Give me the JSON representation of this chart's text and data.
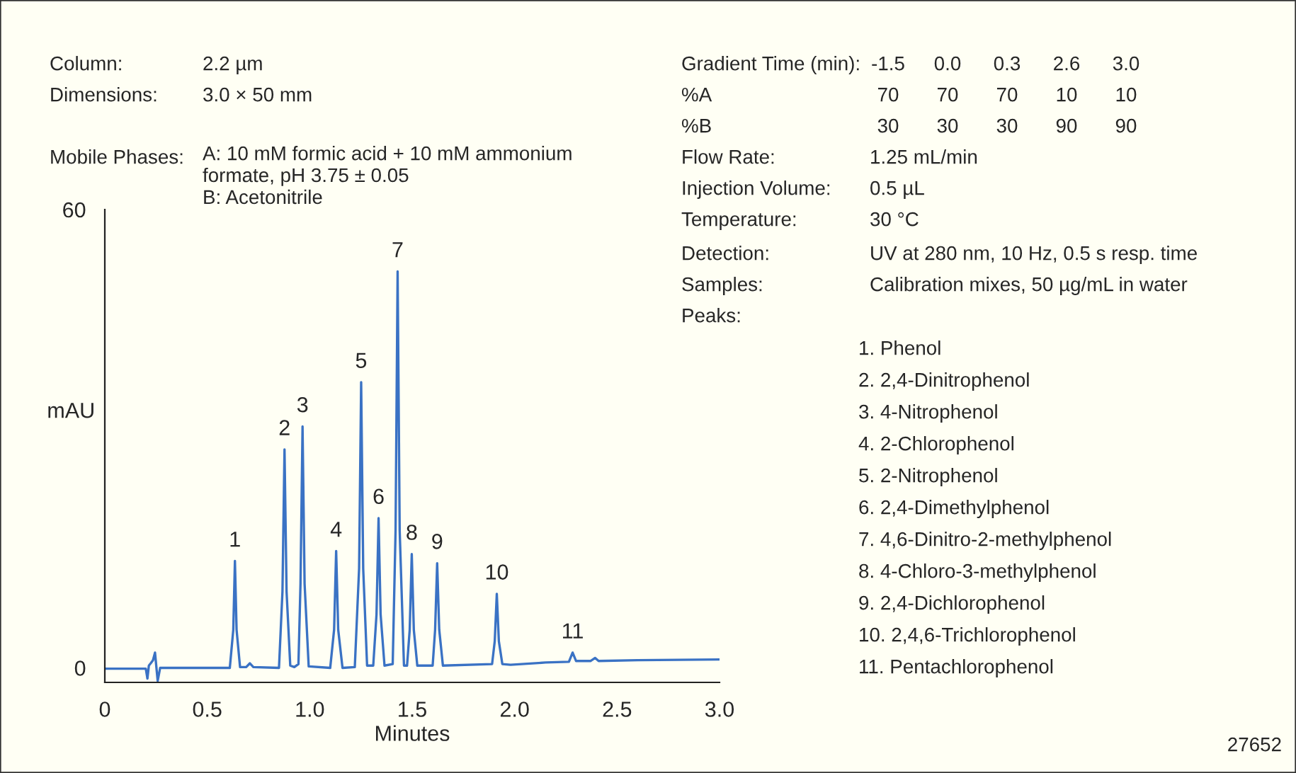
{
  "chart_data": {
    "type": "line",
    "xlabel": "Minutes",
    "ylabel": "mAU",
    "xlim": [
      0,
      3
    ],
    "ylim": [
      -1.9,
      60
    ],
    "xticks": [
      {
        "value": 0,
        "label": "0"
      },
      0.5,
      {
        "value": 1,
        "label": "1.0"
      },
      1.5,
      {
        "value": 2,
        "label": "2.0"
      },
      2.5,
      {
        "value": 3,
        "label": "3.0"
      }
    ],
    "yticks": [
      0,
      60
    ],
    "series": [
      {
        "color": "#3a72c4",
        "x": [
          0.0,
          0.2,
          0.208,
          0.215,
          0.224,
          0.235,
          0.245,
          0.252,
          0.258,
          0.27,
          0.3,
          0.61,
          0.627,
          0.635,
          0.643,
          0.66,
          0.69,
          0.708,
          0.725,
          0.85,
          0.867,
          0.877,
          0.887,
          0.905,
          0.925,
          0.945,
          0.955,
          0.965,
          0.975,
          0.995,
          1.1,
          1.119,
          1.129,
          1.139,
          1.16,
          1.22,
          1.241,
          1.251,
          1.261,
          1.28,
          1.31,
          1.326,
          1.336,
          1.346,
          1.365,
          1.405,
          1.419,
          1.429,
          1.439,
          1.46,
          1.475,
          1.488,
          1.498,
          1.508,
          1.525,
          1.6,
          1.612,
          1.622,
          1.632,
          1.65,
          1.89,
          1.903,
          1.913,
          1.923,
          1.94,
          1.98,
          2.15,
          2.265,
          2.283,
          2.3,
          2.37,
          2.393,
          2.41,
          2.6,
          3.0
        ],
        "values": [
          -0.1,
          -0.1,
          -1.4,
          0.3,
          0.6,
          1.0,
          2.0,
          0.0,
          -1.7,
          0.0,
          0.0,
          0.0,
          5.0,
          14.0,
          5.0,
          0.1,
          0.1,
          0.6,
          0.1,
          0.0,
          10.0,
          28.6,
          10.0,
          0.3,
          0.1,
          0.5,
          11.0,
          31.6,
          11.0,
          0.2,
          0.0,
          5.0,
          15.3,
          5.0,
          0.0,
          0.1,
          13.0,
          37.4,
          13.0,
          0.3,
          0.3,
          7.0,
          19.6,
          7.0,
          0.3,
          0.5,
          18.0,
          51.9,
          18.0,
          0.3,
          0.3,
          5.0,
          14.9,
          5.0,
          0.3,
          0.3,
          5.0,
          13.7,
          5.0,
          0.3,
          0.5,
          3.5,
          9.7,
          3.5,
          0.5,
          0.4,
          0.7,
          0.8,
          2.0,
          0.9,
          0.9,
          1.3,
          0.9,
          1.0,
          1.1
        ]
      }
    ],
    "annotations": [
      {
        "text": "1",
        "x": 0.635,
        "y": 14.0
      },
      {
        "text": "2",
        "x": 0.877,
        "y": 28.6
      },
      {
        "text": "3",
        "x": 0.965,
        "y": 31.6
      },
      {
        "text": "4",
        "x": 1.129,
        "y": 15.3
      },
      {
        "text": "5",
        "x": 1.251,
        "y": 37.4
      },
      {
        "text": "6",
        "x": 1.336,
        "y": 19.6
      },
      {
        "text": "7",
        "x": 1.429,
        "y": 51.9
      },
      {
        "text": "8",
        "x": 1.498,
        "y": 14.9
      },
      {
        "text": "9",
        "x": 1.622,
        "y": 13.7
      },
      {
        "text": "10",
        "x": 1.913,
        "y": 9.7
      },
      {
        "text": "11",
        "x": 2.283,
        "y": 2.0
      },
      "Column:",
      "2.2 µm",
      "Dimensions:",
      "3.0 × 50 mm",
      "Mobile Phases:",
      "A: 10 mM formic acid + 10 mM ammonium\nformate, pH 3.75 ± 0.05\nB: Acetonitrile",
      "Gradient Time (min):",
      "-1.5",
      "0.0",
      "0.3",
      "2.6",
      "3.0",
      "%A",
      "70",
      "70",
      "70",
      "10",
      "10",
      "%B",
      "30",
      "30",
      "30",
      "90",
      "90",
      "Flow Rate:",
      "1.25 mL/min",
      "Injection Volume:",
      "0.5 µL",
      "Temperature:",
      "30 °C",
      "Detection:",
      "UV at 280 nm, 10 Hz, 0.5 s resp. time",
      "Samples:",
      "Calibration mixes, 50 µg/mL in water",
      "Peaks:",
      "1. Phenol",
      "2. 2,4-Dinitrophenol",
      "3. 4-Nitrophenol",
      "4. 2-Chlorophenol",
      "5. 2-Nitrophenol",
      "6. 2,4-Dimethylphenol",
      "7. 4,6-Dinitro-2-methylphenol",
      "8. 4-Chloro-3-methylphenol",
      "9. 2,4-Dichlorophenol",
      "10. 2,4,6-Trichlorophenol",
      "11. Pentachlorophenol",
      "27652"
    ]
  }
}
